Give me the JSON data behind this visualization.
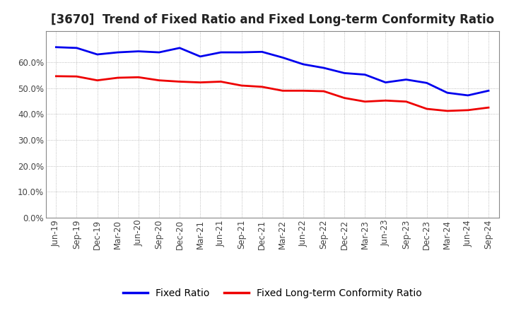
{
  "title": "[3670]  Trend of Fixed Ratio and Fixed Long-term Conformity Ratio",
  "ylim": [
    0.0,
    0.72
  ],
  "yticks": [
    0.0,
    0.1,
    0.2,
    0.3,
    0.4,
    0.5,
    0.6
  ],
  "x_labels": [
    "Jun-19",
    "Sep-19",
    "Dec-19",
    "Mar-20",
    "Jun-20",
    "Sep-20",
    "Dec-20",
    "Mar-21",
    "Jun-21",
    "Sep-21",
    "Dec-21",
    "Mar-22",
    "Jun-22",
    "Sep-22",
    "Dec-22",
    "Mar-23",
    "Jun-23",
    "Sep-23",
    "Dec-23",
    "Mar-24",
    "Jun-24",
    "Sep-24"
  ],
  "fixed_ratio": [
    0.658,
    0.655,
    0.63,
    0.638,
    0.642,
    0.638,
    0.655,
    0.622,
    0.638,
    0.638,
    0.64,
    0.618,
    0.592,
    0.578,
    0.558,
    0.552,
    0.522,
    0.533,
    0.52,
    0.482,
    0.472,
    0.49
  ],
  "fixed_lt_ratio": [
    0.546,
    0.545,
    0.53,
    0.54,
    0.542,
    0.53,
    0.525,
    0.522,
    0.525,
    0.51,
    0.505,
    0.49,
    0.49,
    0.488,
    0.462,
    0.448,
    0.452,
    0.448,
    0.42,
    0.412,
    0.415,
    0.425
  ],
  "line_color_fixed": "#0000EE",
  "line_color_lt": "#EE0000",
  "legend_labels": [
    "Fixed Ratio",
    "Fixed Long-term Conformity Ratio"
  ],
  "background_color": "#ffffff",
  "grid_color": "#aaaaaa",
  "title_fontsize": 12,
  "tick_fontsize": 8.5,
  "legend_fontsize": 10
}
